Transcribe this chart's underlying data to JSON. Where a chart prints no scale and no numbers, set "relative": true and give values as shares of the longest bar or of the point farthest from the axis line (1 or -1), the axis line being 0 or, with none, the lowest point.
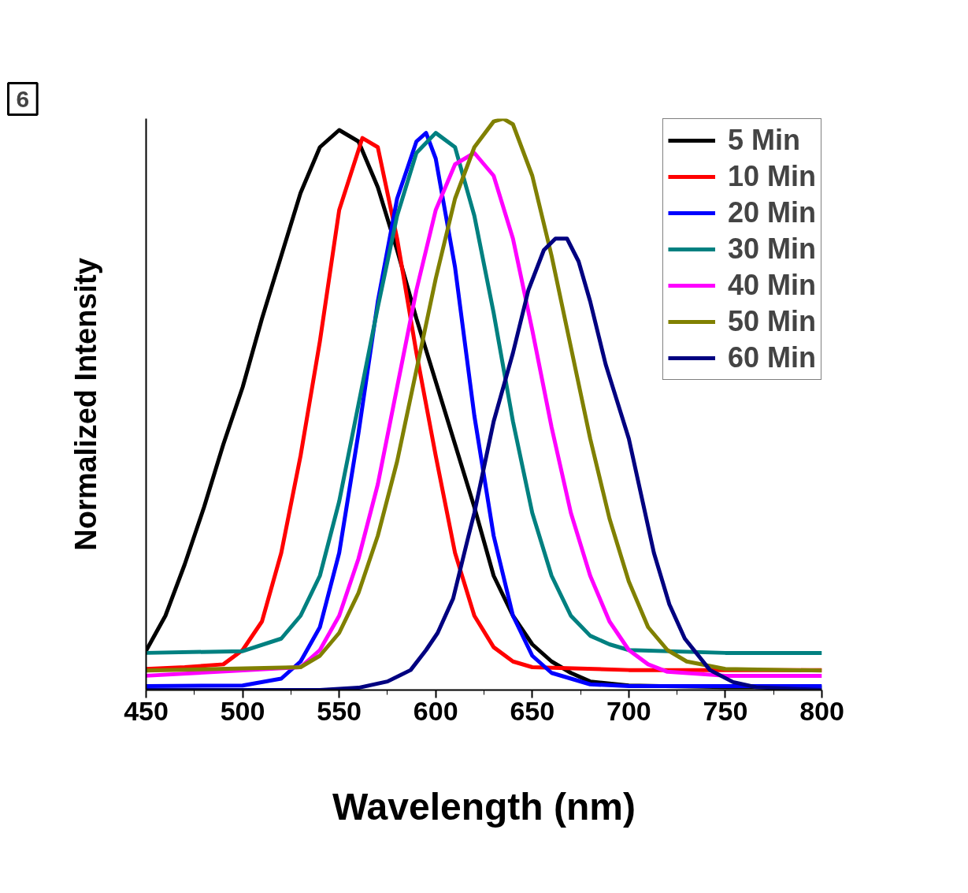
{
  "chart_data": {
    "type": "line",
    "relative": true,
    "xlabel": "Wavelength (nm)",
    "ylabel": "Normalized Intensity",
    "annotations": [
      "6"
    ],
    "xlim": [
      450,
      800
    ],
    "xticks": [
      450,
      500,
      550,
      600,
      650,
      700,
      750,
      800
    ],
    "grid": false,
    "legend": "top right",
    "marker": "none",
    "line_style": "solid",
    "series": [
      {
        "name": "5 Min",
        "color": "#000000",
        "x": [
          450,
          460,
          470,
          480,
          490,
          500,
          510,
          520,
          530,
          540,
          550,
          560,
          570,
          580,
          590,
          600,
          610,
          620,
          630,
          640,
          650,
          660,
          670,
          680,
          700,
          750,
          800
        ],
        "values": [
          0.069,
          0.13,
          0.22,
          0.32,
          0.43,
          0.53,
          0.65,
          0.76,
          0.87,
          0.95,
          0.98,
          0.96,
          0.88,
          0.77,
          0.65,
          0.54,
          0.43,
          0.32,
          0.2,
          0.13,
          0.08,
          0.05,
          0.03,
          0.015,
          0.008,
          0.005,
          0.005
        ]
      },
      {
        "name": "10 Min",
        "color": "#ff0000",
        "x": [
          450,
          470,
          490,
          500,
          510,
          520,
          530,
          540,
          550,
          562,
          570,
          580,
          590,
          600,
          610,
          620,
          630,
          640,
          650,
          700,
          800
        ],
        "values": [
          0.037,
          0.04,
          0.045,
          0.07,
          0.12,
          0.24,
          0.41,
          0.61,
          0.84,
          0.966,
          0.95,
          0.79,
          0.59,
          0.41,
          0.24,
          0.13,
          0.075,
          0.05,
          0.04,
          0.035,
          0.035
        ]
      },
      {
        "name": "20 Min",
        "color": "#0000ff",
        "x": [
          450,
          500,
          520,
          530,
          540,
          550,
          560,
          570,
          580,
          590,
          595,
          600,
          610,
          620,
          630,
          640,
          650,
          660,
          680,
          700,
          800
        ],
        "values": [
          0.007,
          0.008,
          0.02,
          0.05,
          0.11,
          0.24,
          0.45,
          0.68,
          0.86,
          0.96,
          0.975,
          0.93,
          0.74,
          0.48,
          0.27,
          0.13,
          0.06,
          0.03,
          0.01,
          0.007,
          0.007
        ]
      },
      {
        "name": "30 Min",
        "color": "#008080",
        "x": [
          450,
          500,
          520,
          530,
          540,
          550,
          560,
          570,
          580,
          590,
          600,
          610,
          620,
          630,
          640,
          650,
          660,
          670,
          680,
          690,
          700,
          750,
          800
        ],
        "values": [
          0.065,
          0.068,
          0.09,
          0.13,
          0.2,
          0.33,
          0.5,
          0.67,
          0.83,
          0.94,
          0.975,
          0.95,
          0.83,
          0.66,
          0.47,
          0.31,
          0.2,
          0.13,
          0.095,
          0.08,
          0.07,
          0.065,
          0.065
        ]
      },
      {
        "name": "40 Min",
        "color": "#ff00ff",
        "x": [
          450,
          530,
          540,
          550,
          560,
          570,
          580,
          590,
          600,
          610,
          620,
          630,
          640,
          650,
          660,
          670,
          680,
          690,
          700,
          710,
          720,
          750,
          800
        ],
        "values": [
          0.025,
          0.04,
          0.07,
          0.13,
          0.23,
          0.36,
          0.53,
          0.7,
          0.84,
          0.92,
          0.94,
          0.9,
          0.79,
          0.63,
          0.46,
          0.31,
          0.2,
          0.12,
          0.07,
          0.045,
          0.032,
          0.025,
          0.025
        ]
      },
      {
        "name": "50 Min",
        "color": "#808000",
        "x": [
          450,
          530,
          540,
          550,
          560,
          570,
          580,
          590,
          600,
          610,
          620,
          630,
          635,
          640,
          650,
          660,
          670,
          680,
          690,
          700,
          710,
          720,
          730,
          750,
          800
        ],
        "values": [
          0.034,
          0.04,
          0.06,
          0.1,
          0.17,
          0.27,
          0.4,
          0.56,
          0.72,
          0.86,
          0.95,
          0.995,
          1.0,
          0.99,
          0.9,
          0.76,
          0.6,
          0.44,
          0.3,
          0.19,
          0.11,
          0.07,
          0.05,
          0.037,
          0.034
        ]
      },
      {
        "name": "60 Min",
        "color": "#000080",
        "x": [
          450,
          540,
          560,
          575,
          587,
          595,
          601,
          609,
          617,
          620,
          630,
          640,
          648,
          656,
          662,
          668,
          674,
          680,
          688,
          700,
          713,
          721,
          729,
          742,
          754,
          766,
          800
        ],
        "values": [
          0,
          0,
          0.004,
          0.015,
          0.035,
          0.07,
          0.1,
          0.16,
          0.27,
          0.31,
          0.47,
          0.59,
          0.7,
          0.77,
          0.79,
          0.79,
          0.75,
          0.68,
          0.57,
          0.44,
          0.24,
          0.15,
          0.09,
          0.035,
          0.014,
          0.005,
          0
        ]
      }
    ]
  }
}
